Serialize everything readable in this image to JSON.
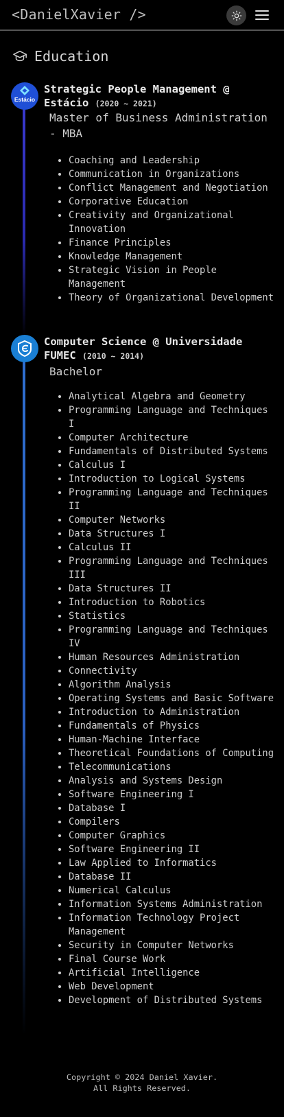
{
  "header": {
    "logo": "<DanielXavier />",
    "theme_icon": "sun-icon",
    "menu_icon": "hamburger-menu-icon"
  },
  "section": {
    "icon": "graduation-cap-icon",
    "title": "Education"
  },
  "education": [
    {
      "institution_logo": "estacio-logo",
      "logo_text": "Estácio",
      "title": "Strategic People Management @ Estácio",
      "years": "(2020 ~ 2021)",
      "degree": "Master of Business Administration - MBA",
      "courses": [
        "Coaching and Leadership",
        "Communication in Organizations",
        "Conflict Management and Negotiation",
        "Corporative Education",
        "Creativity and Organizational Innovation",
        "Finance Principles",
        "Knowledge Management",
        "Strategic Vision in People Management",
        "Theory of Organizational Development"
      ]
    },
    {
      "institution_logo": "fumec-logo",
      "title": "Computer Science @ Universidade FUMEC",
      "years": "(2010 ~ 2014)",
      "degree": "Bachelor",
      "courses": [
        "Analytical Algebra and Geometry",
        "Programming Language and Techniques I",
        "Computer Architecture",
        "Fundamentals of Distributed Systems",
        "Calculus I",
        "Introduction to Logical Systems",
        "Programming Language and Techniques II",
        "Computer Networks",
        "Data Structures I",
        "Calculus II",
        "Programming Language and Techniques III",
        "Data Structures II",
        "Introduction to Robotics",
        "Statistics",
        "Programming Language and Techniques IV",
        "Human Resources Administration",
        "Connectivity",
        "Algorithm Analysis",
        "Operating Systems and Basic Software",
        "Introduction to Administration",
        "Fundamentals of Physics",
        "Human-Machine Interface",
        "Theoretical Foundations of Computing",
        "Telecommunications",
        "Analysis and Systems Design",
        "Software Engineering I",
        "Database I",
        "Compilers",
        "Computer Graphics",
        "Software Engineering II",
        "Law Applied to Informatics",
        "Database II",
        "Numerical Calculus",
        "Information Systems Administration",
        "Information Technology Project Management",
        "Security in Computer Networks",
        "Final Course Work",
        "Artificial Intelligence",
        "Web Development",
        "Development of Distributed Systems"
      ]
    }
  ],
  "footer": {
    "line1": "Copyright © 2024 Daniel Xavier.",
    "line2": "All Rights Reserved."
  },
  "colors": {
    "background": "#000000",
    "estacio_line": "#3a3ad0",
    "fumec_line": "#2e6fd0",
    "estacio_logo_bg": "#1f4fd6",
    "fumec_logo_bg": "#1a7fd4"
  }
}
